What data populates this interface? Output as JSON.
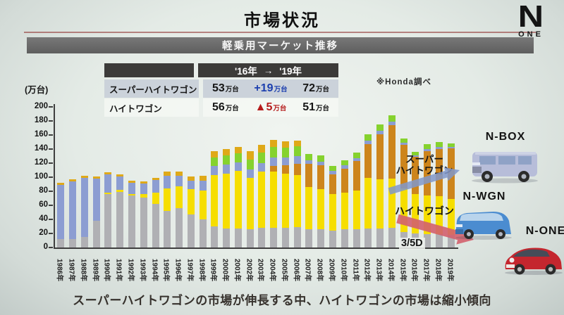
{
  "slide": {
    "title": "市場状況",
    "subtitle": "軽乗用マーケット推移",
    "source_note": "※Honda調べ",
    "bottom_message": "スーパーハイトワゴンの市場が伸長する中、ハイトワゴンの市場は縮小傾向"
  },
  "logo": {
    "letter": "N",
    "word": "ONE"
  },
  "summary_table": {
    "header": {
      "from": "'16年",
      "arrow": "→",
      "to": "'19年"
    },
    "unit": "万台",
    "rows": [
      {
        "label": "スーパーハイトワゴン",
        "from": "53",
        "change": "+19",
        "change_color": "#1c3fae",
        "to": "72"
      },
      {
        "label": "ハイトワゴン",
        "from": "56",
        "change": "▲5",
        "change_color": "#b51b1b",
        "to": "51"
      }
    ]
  },
  "annotations": {
    "super_line1": "スーパー",
    "super_line2": "ハイトワゴン",
    "height": "ハイトワゴン",
    "hatch": "3/5D",
    "up_arrow_color": "rgba(128,152,202,0.85)",
    "down_arrow_color": "rgba(211,96,110,0.9)"
  },
  "cars": [
    {
      "name": "N-BOX",
      "body_color": "#b7bdd9"
    },
    {
      "name": "N-WGN",
      "body_color": "#4b8cd0"
    },
    {
      "name": "N-ONE",
      "body_color": "#c4262e"
    }
  ],
  "chart_data": {
    "type": "bar",
    "stacked": true,
    "title": "軽乗用マーケット推移",
    "ylabel": "(万台)",
    "ylim": [
      0,
      200
    ],
    "ytick_step": 20,
    "grid": false,
    "legend": "none",
    "categories": [
      "1986年",
      "1987年",
      "1988年",
      "1989年",
      "1990年",
      "1991年",
      "1992年",
      "1993年",
      "1994年",
      "1995年",
      "1996年",
      "1997年",
      "1998年",
      "1999年",
      "2000年",
      "2001年",
      "2002年",
      "2003年",
      "2004年",
      "2005年",
      "2006年",
      "2007年",
      "2008年",
      "2009年",
      "2010年",
      "2011年",
      "2012年",
      "2013年",
      "2014年",
      "2015年",
      "2016年",
      "2017年",
      "2018年",
      "2019年"
    ],
    "stack_order": [
      "hatch_3_5d",
      "height_wagon",
      "super_height_wagon",
      "other_blue",
      "other_green",
      "other_gold"
    ],
    "colors": {
      "hatch_3_5d": "#b0b0b4",
      "height_wagon": "#f6de00",
      "super_height_wagon": "#cd851c",
      "other_blue": "#8c9dd2",
      "other_green": "#85d22e",
      "other_gold": "#dfa918"
    },
    "series": [
      {
        "name": "hatch_3_5d",
        "label": "3/5D",
        "values": [
          12,
          12,
          15,
          38,
          76,
          79,
          74,
          71,
          62,
          52,
          56,
          47,
          40,
          30,
          27,
          27,
          26,
          28,
          28,
          28,
          29,
          26,
          26,
          24,
          26,
          26,
          27,
          27,
          28,
          22,
          20,
          19,
          19,
          18
        ]
      },
      {
        "name": "height_wagon",
        "label": "ハイトワゴン",
        "values": [
          0,
          0,
          0,
          0,
          2,
          3,
          2,
          5,
          16,
          32,
          31,
          36,
          41,
          73,
          78,
          82,
          73,
          80,
          80,
          77,
          74,
          60,
          57,
          52,
          52,
          55,
          72,
          70,
          70,
          62,
          56,
          55,
          54,
          51
        ]
      },
      {
        "name": "super_height_wagon",
        "label": "スーパーハイトワゴン",
        "values": [
          0,
          0,
          0,
          0,
          0,
          0,
          0,
          0,
          0,
          0,
          0,
          0,
          0,
          0,
          0,
          0,
          0,
          0,
          8,
          12,
          16,
          33,
          34,
          28,
          34,
          42,
          48,
          64,
          76,
          62,
          53,
          63,
          67,
          72
        ]
      },
      {
        "name": "other_blue",
        "label": "",
        "values": [
          77,
          82,
          84,
          60,
          26,
          19,
          16,
          15,
          18,
          18,
          15,
          12,
          14,
          13,
          13,
          12,
          12,
          12,
          12,
          11,
          11,
          5,
          5,
          5,
          5,
          4,
          5,
          5,
          5,
          3,
          2,
          3,
          3,
          2
        ]
      },
      {
        "name": "other_green",
        "label": "",
        "values": [
          0,
          0,
          0,
          0,
          0,
          0,
          0,
          0,
          0,
          0,
          0,
          0,
          0,
          12,
          13,
          13,
          14,
          15,
          15,
          14,
          14,
          9,
          9,
          7,
          7,
          8,
          9,
          9,
          9,
          6,
          5,
          7,
          7,
          5
        ]
      },
      {
        "name": "other_gold",
        "label": "",
        "values": [
          3,
          3,
          3,
          3,
          3,
          3,
          3,
          3,
          3,
          6,
          6,
          6,
          7,
          9,
          9,
          9,
          12,
          11,
          10,
          9,
          8,
          0,
          0,
          0,
          0,
          0,
          0,
          0,
          0,
          0,
          0,
          0,
          0,
          0
        ]
      }
    ]
  }
}
